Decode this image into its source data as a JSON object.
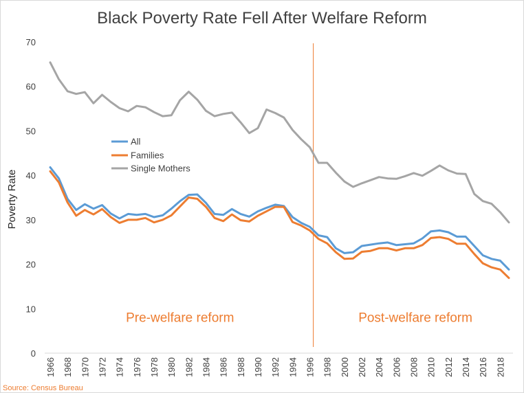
{
  "chart_data": {
    "type": "line",
    "title": "Black Poverty Rate Fell After Welfare Reform",
    "ylabel": "Poverty Rate",
    "xlabel": "",
    "ylim": [
      0,
      70
    ],
    "yticks": [
      0,
      10,
      20,
      30,
      40,
      50,
      60,
      70
    ],
    "xlim": [
      1966,
      2019
    ],
    "xticks": [
      1966,
      1968,
      1970,
      1972,
      1974,
      1976,
      1978,
      1980,
      1982,
      1984,
      1986,
      1988,
      1990,
      1992,
      1994,
      1996,
      1998,
      2000,
      2002,
      2004,
      2006,
      2008,
      2010,
      2012,
      2014,
      2016,
      2018
    ],
    "grid": false,
    "legend_position": "upper-left",
    "x": [
      1966,
      1967,
      1968,
      1969,
      1970,
      1971,
      1972,
      1973,
      1974,
      1975,
      1976,
      1977,
      1978,
      1979,
      1980,
      1981,
      1982,
      1983,
      1984,
      1985,
      1986,
      1987,
      1988,
      1989,
      1990,
      1991,
      1992,
      1993,
      1994,
      1995,
      1996,
      1997,
      1998,
      1999,
      2000,
      2001,
      2002,
      2003,
      2004,
      2005,
      2006,
      2007,
      2008,
      2009,
      2010,
      2011,
      2012,
      2013,
      2014,
      2015,
      2016,
      2017,
      2018,
      2019
    ],
    "series": [
      {
        "name": "All",
        "color": "#5b9bd5",
        "values": [
          41.8,
          39.3,
          34.7,
          32.2,
          33.5,
          32.5,
          33.3,
          31.4,
          30.3,
          31.3,
          31.1,
          31.3,
          30.6,
          31.0,
          32.5,
          34.2,
          35.6,
          35.7,
          33.8,
          31.3,
          31.1,
          32.4,
          31.3,
          30.7,
          31.9,
          32.7,
          33.4,
          33.1,
          30.6,
          29.3,
          28.4,
          26.5,
          26.1,
          23.6,
          22.5,
          22.7,
          24.1,
          24.4,
          24.7,
          24.9,
          24.3,
          24.5,
          24.7,
          25.8,
          27.4,
          27.6,
          27.2,
          26.2,
          26.2,
          24.1,
          22.0,
          21.2,
          20.8,
          18.8
        ]
      },
      {
        "name": "Families",
        "color": "#ed7d31",
        "values": [
          40.9,
          38.4,
          33.9,
          30.9,
          32.2,
          31.2,
          32.4,
          30.6,
          29.3,
          30.0,
          30.0,
          30.4,
          29.4,
          30.0,
          31.0,
          33.0,
          35.0,
          34.7,
          32.9,
          30.4,
          29.7,
          31.2,
          29.9,
          29.6,
          30.9,
          31.9,
          32.9,
          32.9,
          29.5,
          28.7,
          27.6,
          25.7,
          24.7,
          22.7,
          21.2,
          21.3,
          22.8,
          23.0,
          23.6,
          23.6,
          23.1,
          23.6,
          23.6,
          24.3,
          25.9,
          26.1,
          25.7,
          24.6,
          24.6,
          22.3,
          20.2,
          19.3,
          18.8,
          16.9
        ]
      },
      {
        "name": "Single Mothers",
        "color": "#a5a5a5",
        "values": [
          65.4,
          61.6,
          58.9,
          58.3,
          58.7,
          56.2,
          58.1,
          56.5,
          55.1,
          54.4,
          55.6,
          55.3,
          54.2,
          53.3,
          53.5,
          56.9,
          58.8,
          57.0,
          54.5,
          53.3,
          53.8,
          54.1,
          51.9,
          49.5,
          50.6,
          54.8,
          54.0,
          53.0,
          50.2,
          48.1,
          46.3,
          42.8,
          42.8,
          40.6,
          38.6,
          37.4,
          38.2,
          38.9,
          39.6,
          39.3,
          39.2,
          39.8,
          40.5,
          39.9,
          41.0,
          42.2,
          41.1,
          40.4,
          40.3,
          35.8,
          34.2,
          33.6,
          31.7,
          29.4
        ]
      }
    ],
    "divider": {
      "x": 1996.4
    },
    "annotations": [
      {
        "text": "Pre-welfare reform",
        "x": 1981,
        "y": 5.2
      },
      {
        "text": "Post-welfare reform",
        "x": 2008.2,
        "y": 5.2
      }
    ],
    "source": "Source: Census Bureau"
  }
}
